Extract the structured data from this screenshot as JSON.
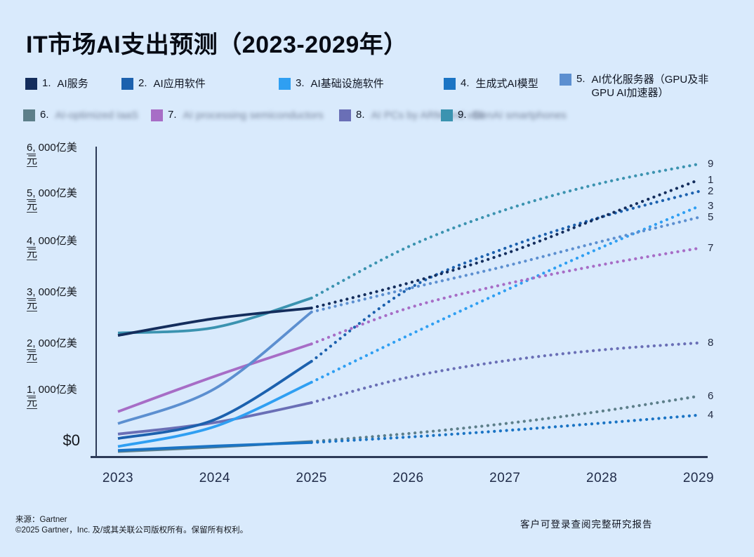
{
  "title": "IT市场AI支出预测（2023-2029年）",
  "y_axis": {
    "unit": "亿美元",
    "zero_label": "$0",
    "labels": [
      {
        "pre": "6,",
        "mid": "000亿美",
        "tail": "元"
      },
      {
        "pre": "5,",
        "mid": "000亿美",
        "tail": "元"
      },
      {
        "pre": "4,",
        "mid": "000亿美",
        "tail": "元"
      },
      {
        "pre": "3,",
        "mid": "000亿美",
        "tail": "元"
      },
      {
        "pre": "2,",
        "mid": "000亿美",
        "tail": "元"
      },
      {
        "pre": "1,",
        "mid": "000亿美",
        "tail": "元"
      }
    ]
  },
  "chart_data": {
    "type": "line",
    "title": "IT市场AI支出预测（2023-2029年）",
    "x": [
      2023,
      2024,
      2025,
      2026,
      2027,
      2028,
      2029
    ],
    "x_labels": [
      "2023",
      "2024",
      "2025",
      "2026",
      "2027",
      "2028",
      "2029"
    ],
    "ylim": [
      0,
      6000
    ],
    "y_tick_step": 1000,
    "y_unit": "亿美元 (hundreds of millions USD)",
    "grid": false,
    "legend_position": "top",
    "style_note": "solid lines 2023-2025 (actuals), dotted lines 2025-2029 (forecast), series number labels at right end",
    "solid_until": 2025,
    "series": [
      {
        "id": "1",
        "num": "1.",
        "name": "AI服务",
        "color": "#142d5c",
        "blurred": false,
        "values": [
          2420,
          2760,
          2970,
          3470,
          4060,
          4800,
          5540
        ]
      },
      {
        "id": "2",
        "num": "2.",
        "name": "AI应用软件",
        "color": "#1c61ae",
        "blurred": false,
        "values": [
          350,
          730,
          1900,
          3350,
          4170,
          4800,
          5310
        ]
      },
      {
        "id": "3",
        "num": "3.",
        "name": "AI基础设施软件",
        "color": "#2f9ff2",
        "blurred": false,
        "values": [
          190,
          590,
          1480,
          2420,
          3320,
          4190,
          5010
        ]
      },
      {
        "id": "4",
        "num": "4.",
        "name": "生成式AI模型",
        "color": "#1b74c4",
        "blurred": false,
        "values": [
          110,
          200,
          270,
          380,
          510,
          660,
          820
        ]
      },
      {
        "id": "5",
        "num": "5.",
        "name": "AI优化服务器（GPU及非GPU AI加速器）",
        "color": "#5c8fd0",
        "blurred": false,
        "values": [
          650,
          1350,
          2890,
          3360,
          3810,
          4310,
          4790
        ]
      },
      {
        "id": "6",
        "num": "6.",
        "name": "AI-optimized IaaS",
        "color": "#5d7f8a",
        "blurred": true,
        "values": [
          90,
          180,
          290,
          450,
          650,
          900,
          1200
        ]
      },
      {
        "id": "7",
        "num": "7.",
        "name": "AI processing semiconductors",
        "color": "#a76dc6",
        "blurred": true,
        "values": [
          890,
          1600,
          2250,
          2970,
          3450,
          3840,
          4170
        ]
      },
      {
        "id": "8",
        "num": "8.",
        "name": "AI PCs by ARM and x86",
        "color": "#6a6fb6",
        "blurred": true,
        "values": [
          440,
          670,
          1070,
          1580,
          1910,
          2130,
          2270
        ]
      },
      {
        "id": "9",
        "num": "9.",
        "name": "GenAI smartphones",
        "color": "#3b93b0",
        "blurred": true,
        "values": [
          2470,
          2580,
          3170,
          4200,
          4940,
          5480,
          5860
        ]
      }
    ]
  },
  "footer": {
    "source_line1": "来源：Gartner",
    "source_line2": "©2025 Gartner，Inc. 及/或其关联公司版权所有。保留所有权利。",
    "client_note": "客户可登录查阅完整研究报告"
  }
}
